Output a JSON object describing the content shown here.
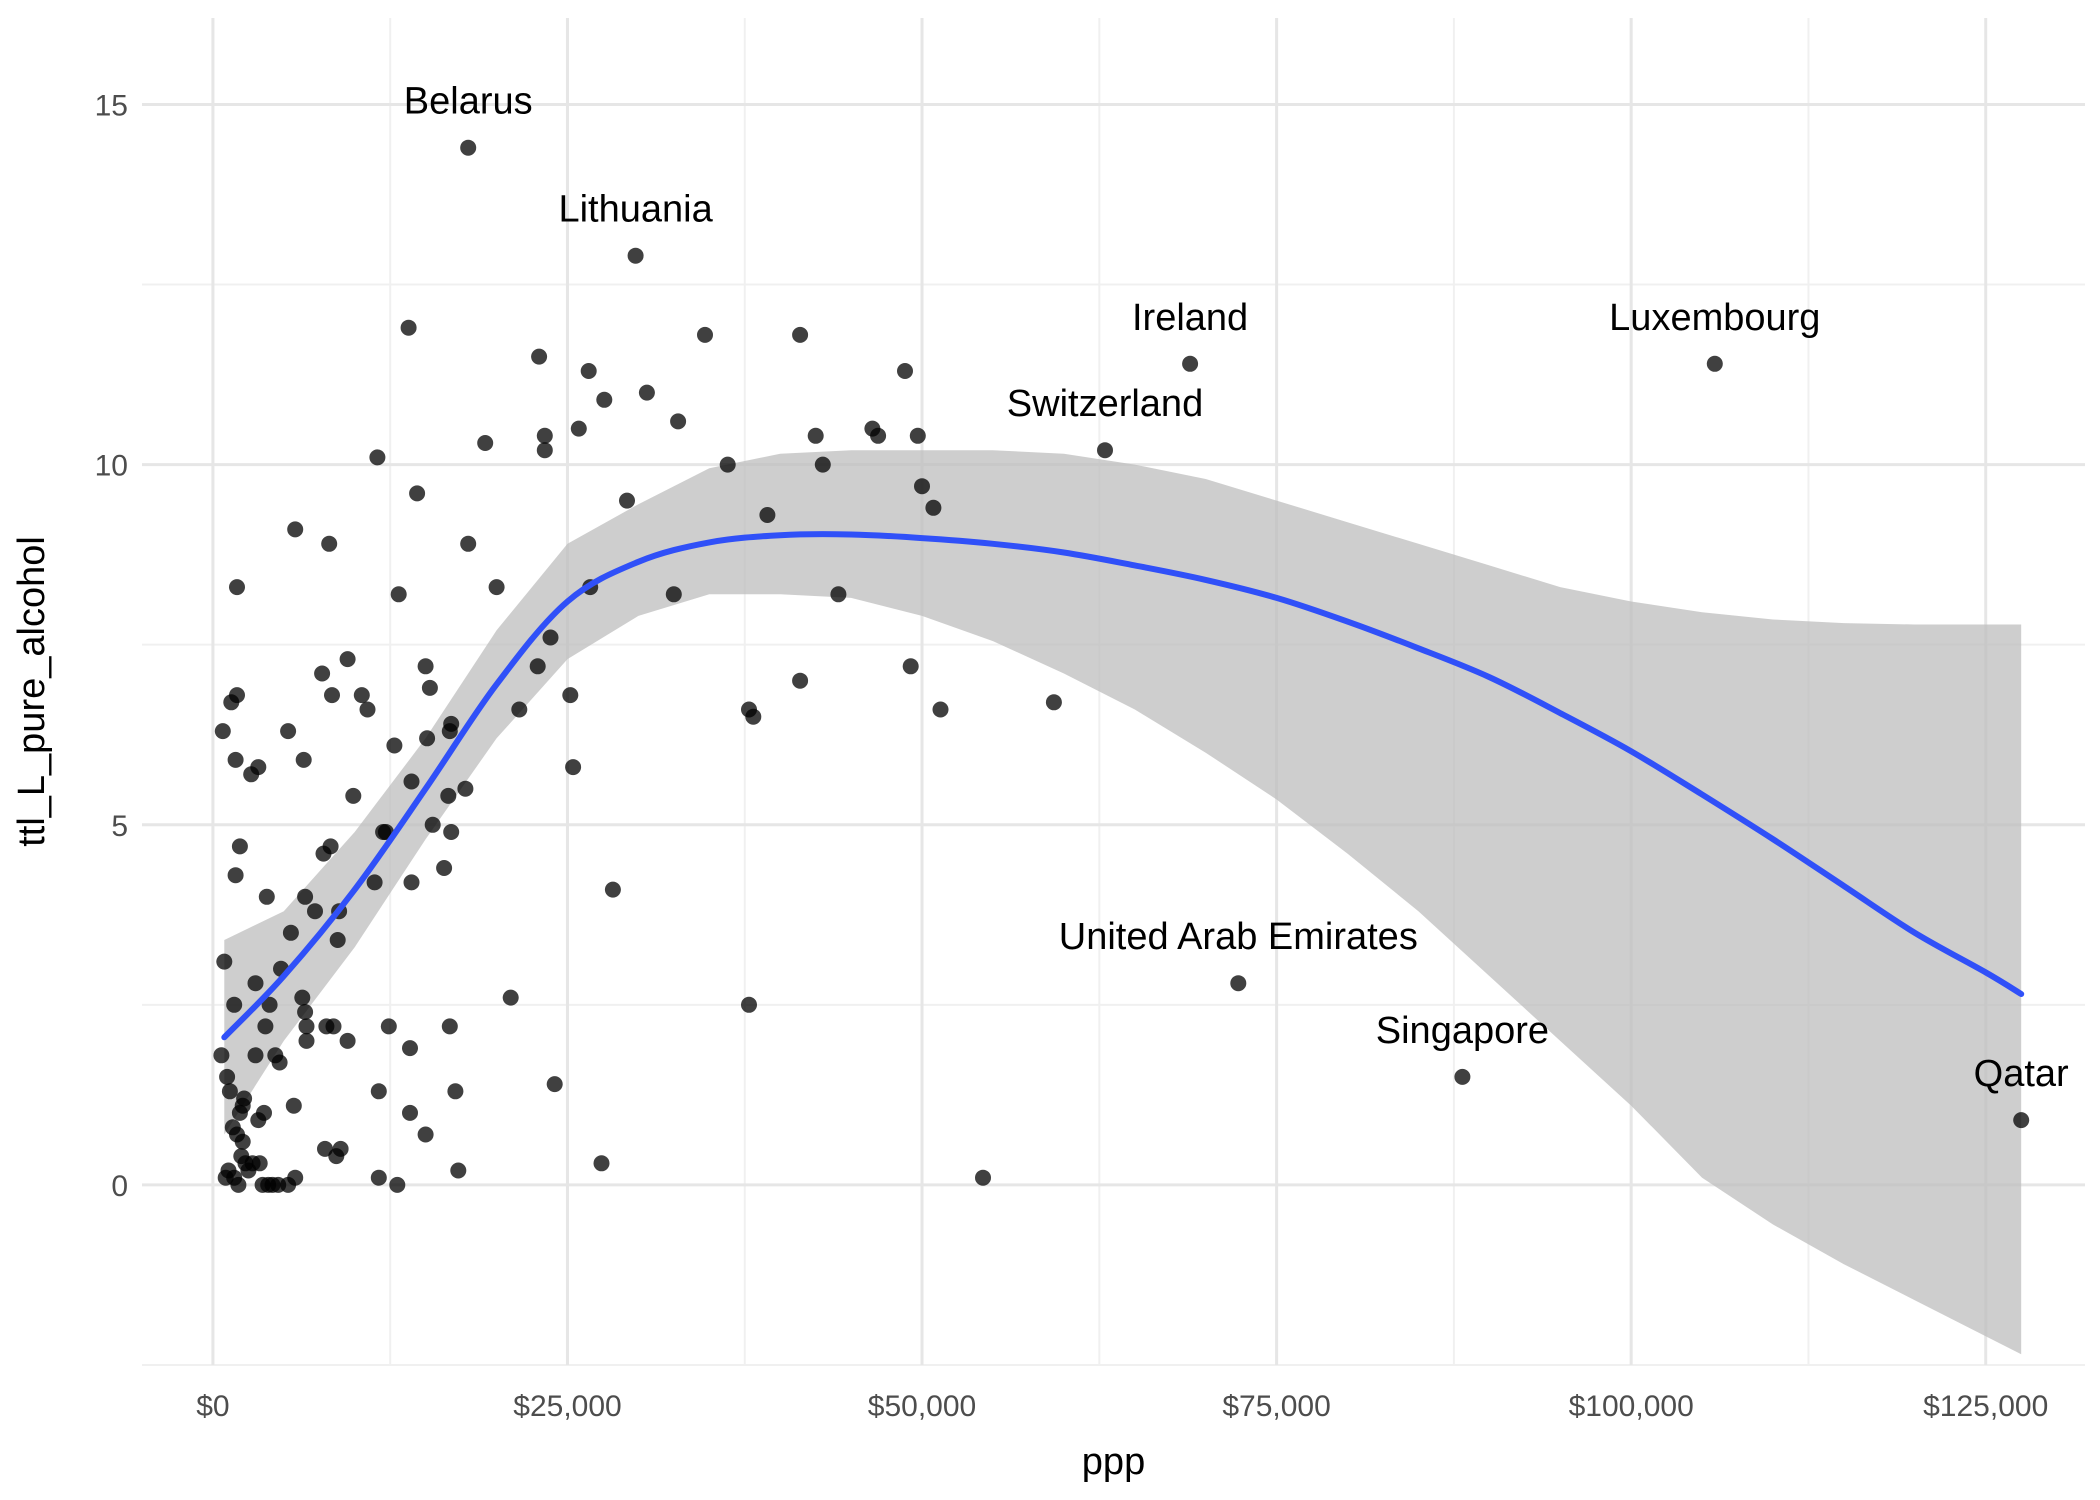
{
  "chart_data": {
    "type": "scatter",
    "xlabel": "ppp",
    "ylabel": "ttl_L_pure_alcohol",
    "xlim": [
      -5000,
      132000
    ],
    "ylim": [
      -2.5,
      16.2
    ],
    "x_ticks": [
      0,
      25000,
      50000,
      75000,
      100000,
      125000
    ],
    "x_tick_labels": [
      "$0",
      "$25,000",
      "$50,000",
      "$75,000",
      "$100,000",
      "$125,000"
    ],
    "y_ticks": [
      0,
      5,
      10,
      15
    ],
    "y_tick_labels": [
      "0",
      "5",
      "10",
      "15"
    ],
    "grid": true,
    "colors": {
      "points": "#000000",
      "smooth_line": "#3050f8",
      "ribbon": "#bdbdbd"
    },
    "points": [
      {
        "x": 600,
        "y": 1.8
      },
      {
        "x": 700,
        "y": 6.3
      },
      {
        "x": 800,
        "y": 3.1
      },
      {
        "x": 900,
        "y": 0.1
      },
      {
        "x": 1000,
        "y": 1.5
      },
      {
        "x": 1100,
        "y": 0.2
      },
      {
        "x": 1200,
        "y": 1.3
      },
      {
        "x": 1300,
        "y": 6.7
      },
      {
        "x": 1400,
        "y": 0.8
      },
      {
        "x": 1500,
        "y": 2.5
      },
      {
        "x": 1500,
        "y": 0.1
      },
      {
        "x": 1600,
        "y": 5.9
      },
      {
        "x": 1600,
        "y": 4.3
      },
      {
        "x": 1700,
        "y": 8.3
      },
      {
        "x": 1700,
        "y": 6.8
      },
      {
        "x": 1700,
        "y": 0.7
      },
      {
        "x": 1800,
        "y": 0.0
      },
      {
        "x": 1900,
        "y": 4.7
      },
      {
        "x": 1900,
        "y": 1.0
      },
      {
        "x": 2000,
        "y": 0.4
      },
      {
        "x": 2100,
        "y": 1.1
      },
      {
        "x": 2100,
        "y": 0.6
      },
      {
        "x": 2200,
        "y": 1.2
      },
      {
        "x": 2300,
        "y": 0.3
      },
      {
        "x": 2500,
        "y": 0.2
      },
      {
        "x": 2700,
        "y": 5.7
      },
      {
        "x": 2800,
        "y": 0.3
      },
      {
        "x": 3000,
        "y": 2.8
      },
      {
        "x": 3000,
        "y": 1.8
      },
      {
        "x": 3200,
        "y": 0.9
      },
      {
        "x": 3200,
        "y": 5.8
      },
      {
        "x": 3300,
        "y": 0.3
      },
      {
        "x": 3500,
        "y": 0.0
      },
      {
        "x": 3600,
        "y": 1.0
      },
      {
        "x": 3700,
        "y": 2.2
      },
      {
        "x": 3800,
        "y": 4.0
      },
      {
        "x": 3900,
        "y": 0.0
      },
      {
        "x": 4000,
        "y": 2.5
      },
      {
        "x": 4200,
        "y": 0.0
      },
      {
        "x": 4400,
        "y": 1.8
      },
      {
        "x": 4600,
        "y": 0.0
      },
      {
        "x": 4700,
        "y": 1.7
      },
      {
        "x": 4800,
        "y": 3.0
      },
      {
        "x": 5300,
        "y": 6.3
      },
      {
        "x": 5300,
        "y": 0.0
      },
      {
        "x": 5500,
        "y": 3.5
      },
      {
        "x": 5700,
        "y": 1.1
      },
      {
        "x": 5800,
        "y": 9.1
      },
      {
        "x": 5800,
        "y": 0.1
      },
      {
        "x": 6300,
        "y": 2.6
      },
      {
        "x": 6400,
        "y": 5.9
      },
      {
        "x": 6500,
        "y": 4.0
      },
      {
        "x": 6500,
        "y": 2.4
      },
      {
        "x": 6600,
        "y": 2.0
      },
      {
        "x": 6600,
        "y": 2.2
      },
      {
        "x": 7200,
        "y": 3.8
      },
      {
        "x": 7700,
        "y": 7.1
      },
      {
        "x": 7800,
        "y": 4.6
      },
      {
        "x": 7900,
        "y": 0.5
      },
      {
        "x": 8000,
        "y": 2.2
      },
      {
        "x": 8200,
        "y": 8.9
      },
      {
        "x": 8300,
        "y": 4.7
      },
      {
        "x": 8400,
        "y": 6.8
      },
      {
        "x": 8500,
        "y": 2.2
      },
      {
        "x": 8700,
        "y": 0.4
      },
      {
        "x": 8800,
        "y": 3.4
      },
      {
        "x": 8900,
        "y": 3.8
      },
      {
        "x": 9000,
        "y": 0.5
      },
      {
        "x": 9500,
        "y": 7.3
      },
      {
        "x": 9500,
        "y": 2.0
      },
      {
        "x": 9900,
        "y": 5.4
      },
      {
        "x": 10500,
        "y": 6.8
      },
      {
        "x": 10900,
        "y": 6.6
      },
      {
        "x": 11400,
        "y": 4.2
      },
      {
        "x": 11600,
        "y": 10.1
      },
      {
        "x": 11700,
        "y": 1.3
      },
      {
        "x": 11700,
        "y": 0.1
      },
      {
        "x": 12000,
        "y": 4.9
      },
      {
        "x": 12200,
        "y": 4.9
      },
      {
        "x": 12400,
        "y": 2.2
      },
      {
        "x": 12800,
        "y": 6.1
      },
      {
        "x": 13000,
        "y": 0.0
      },
      {
        "x": 13100,
        "y": 8.2
      },
      {
        "x": 13800,
        "y": 11.9
      },
      {
        "x": 13900,
        "y": 1.9
      },
      {
        "x": 13900,
        "y": 1.0
      },
      {
        "x": 14000,
        "y": 5.6
      },
      {
        "x": 14000,
        "y": 4.2
      },
      {
        "x": 14400,
        "y": 9.6
      },
      {
        "x": 15000,
        "y": 7.2
      },
      {
        "x": 15000,
        "y": 0.7
      },
      {
        "x": 15100,
        "y": 6.2
      },
      {
        "x": 15300,
        "y": 6.9
      },
      {
        "x": 15500,
        "y": 5.0
      },
      {
        "x": 16300,
        "y": 4.4
      },
      {
        "x": 16600,
        "y": 5.4
      },
      {
        "x": 16700,
        "y": 6.3
      },
      {
        "x": 16700,
        "y": 2.2
      },
      {
        "x": 16800,
        "y": 6.4
      },
      {
        "x": 16800,
        "y": 4.9
      },
      {
        "x": 17100,
        "y": 1.3
      },
      {
        "x": 17300,
        "y": 0.2
      },
      {
        "x": 17800,
        "y": 5.5
      },
      {
        "x": 18000,
        "y": 14.4
      },
      {
        "x": 18000,
        "y": 8.9
      },
      {
        "x": 19200,
        "y": 10.3
      },
      {
        "x": 20000,
        "y": 8.3
      },
      {
        "x": 21000,
        "y": 2.6
      },
      {
        "x": 21600,
        "y": 6.6
      },
      {
        "x": 22900,
        "y": 7.2
      },
      {
        "x": 23000,
        "y": 11.5
      },
      {
        "x": 23400,
        "y": 10.2
      },
      {
        "x": 23400,
        "y": 10.4
      },
      {
        "x": 23800,
        "y": 7.6
      },
      {
        "x": 24100,
        "y": 1.4
      },
      {
        "x": 25200,
        "y": 6.8
      },
      {
        "x": 25400,
        "y": 5.8
      },
      {
        "x": 25800,
        "y": 10.5
      },
      {
        "x": 26500,
        "y": 11.3
      },
      {
        "x": 26600,
        "y": 8.3
      },
      {
        "x": 27400,
        "y": 0.3
      },
      {
        "x": 27600,
        "y": 10.9
      },
      {
        "x": 28200,
        "y": 4.1
      },
      {
        "x": 29200,
        "y": 9.5
      },
      {
        "x": 29800,
        "y": 12.9
      },
      {
        "x": 30600,
        "y": 11.0
      },
      {
        "x": 32500,
        "y": 8.2
      },
      {
        "x": 32800,
        "y": 10.6
      },
      {
        "x": 34700,
        "y": 11.8
      },
      {
        "x": 36300,
        "y": 10.0
      },
      {
        "x": 37800,
        "y": 6.6
      },
      {
        "x": 37800,
        "y": 2.5
      },
      {
        "x": 38100,
        "y": 6.5
      },
      {
        "x": 39100,
        "y": 9.3
      },
      {
        "x": 41400,
        "y": 11.8
      },
      {
        "x": 41400,
        "y": 7.0
      },
      {
        "x": 42500,
        "y": 10.4
      },
      {
        "x": 43000,
        "y": 10.0
      },
      {
        "x": 44100,
        "y": 8.2
      },
      {
        "x": 46500,
        "y": 10.5
      },
      {
        "x": 46900,
        "y": 10.4
      },
      {
        "x": 48800,
        "y": 11.3
      },
      {
        "x": 49200,
        "y": 7.2
      },
      {
        "x": 49700,
        "y": 10.4
      },
      {
        "x": 50000,
        "y": 9.7
      },
      {
        "x": 50800,
        "y": 9.4
      },
      {
        "x": 51300,
        "y": 6.6
      },
      {
        "x": 54300,
        "y": 0.1
      },
      {
        "x": 59300,
        "y": 6.7
      },
      {
        "x": 62900,
        "y": 10.2
      },
      {
        "x": 68900,
        "y": 11.4
      },
      {
        "x": 72300,
        "y": 2.8
      },
      {
        "x": 88100,
        "y": 1.5
      },
      {
        "x": 105900,
        "y": 11.4
      },
      {
        "x": 127500,
        "y": 0.9
      }
    ],
    "labeled_points": [
      {
        "label": "Belarus",
        "x": 18000,
        "y": 14.4
      },
      {
        "label": "Lithuania",
        "x": 29800,
        "y": 12.9
      },
      {
        "label": "Ireland",
        "x": 68900,
        "y": 11.4
      },
      {
        "label": "Luxembourg",
        "x": 105900,
        "y": 11.4
      },
      {
        "label": "Switzerland",
        "x": 62900,
        "y": 10.2
      },
      {
        "label": "United Arab Emirates",
        "x": 72300,
        "y": 2.8
      },
      {
        "label": "Singapore",
        "x": 88100,
        "y": 1.5
      },
      {
        "label": "Qatar",
        "x": 127500,
        "y": 0.9
      }
    ],
    "smooth": {
      "x": [
        800,
        5000,
        10000,
        15000,
        20000,
        25000,
        30000,
        35000,
        40000,
        45000,
        50000,
        55000,
        60000,
        65000,
        70000,
        75000,
        80000,
        85000,
        90000,
        95000,
        100000,
        105000,
        110000,
        115000,
        120000,
        125000,
        127500
      ],
      "y": [
        2.05,
        2.9,
        4.1,
        5.5,
        6.95,
        8.1,
        8.65,
        8.92,
        9.02,
        9.03,
        8.98,
        8.9,
        8.78,
        8.6,
        8.4,
        8.15,
        7.82,
        7.45,
        7.05,
        6.55,
        6.02,
        5.42,
        4.8,
        4.15,
        3.5,
        2.95,
        2.65
      ],
      "lower": [
        0.7,
        2.0,
        3.3,
        4.8,
        6.2,
        7.3,
        7.9,
        8.2,
        8.2,
        8.15,
        7.9,
        7.55,
        7.1,
        6.6,
        6.0,
        5.35,
        4.6,
        3.8,
        2.9,
        2.0,
        1.1,
        0.1,
        -0.55,
        -1.1,
        -1.6,
        -2.1,
        -2.35
      ],
      "upper": [
        3.4,
        3.8,
        4.9,
        6.2,
        7.7,
        8.9,
        9.45,
        9.95,
        10.15,
        10.2,
        10.2,
        10.2,
        10.15,
        10.0,
        9.8,
        9.5,
        9.2,
        8.9,
        8.6,
        8.3,
        8.1,
        7.95,
        7.85,
        7.8,
        7.78,
        7.78,
        7.78
      ]
    }
  }
}
